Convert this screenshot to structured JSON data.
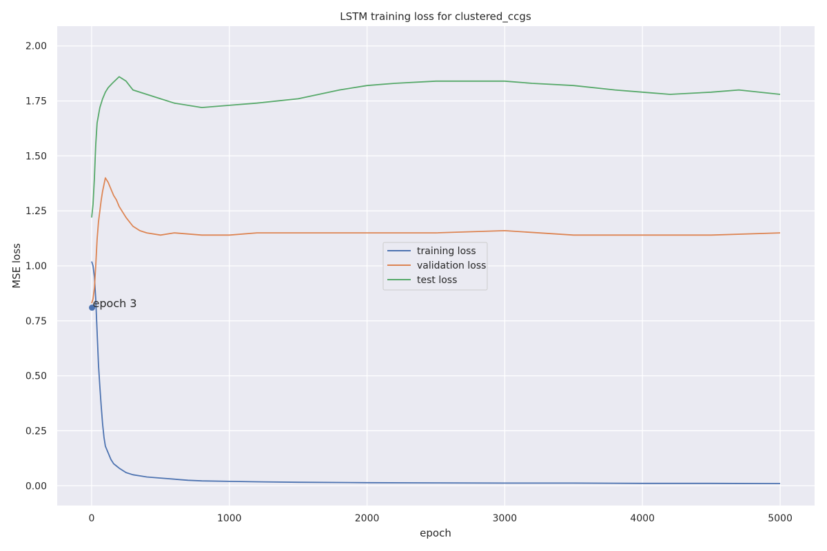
{
  "chart_data": {
    "type": "line",
    "title": "LSTM training loss for clustered_ccgs",
    "xlabel": "epoch",
    "ylabel": "MSE loss",
    "xlim": [
      -250,
      5250
    ],
    "ylim": [
      -0.09,
      2.09
    ],
    "xticks": [
      0,
      1000,
      2000,
      3000,
      4000,
      5000
    ],
    "yticks": [
      0.0,
      0.25,
      0.5,
      0.75,
      1.0,
      1.25,
      1.5,
      1.75,
      2.0
    ],
    "xtick_labels": [
      "0",
      "1000",
      "2000",
      "3000",
      "4000",
      "5000"
    ],
    "ytick_labels": [
      "0.00",
      "0.25",
      "0.50",
      "0.75",
      "1.00",
      "1.25",
      "1.50",
      "1.75",
      "2.00"
    ],
    "grid": true,
    "legend_position": "center",
    "series": [
      {
        "name": "training loss",
        "color": "#4c72b0",
        "x": [
          0,
          10,
          20,
          30,
          40,
          50,
          60,
          70,
          80,
          90,
          100,
          120,
          140,
          160,
          180,
          200,
          250,
          300,
          350,
          400,
          500,
          600,
          700,
          800,
          1000,
          1200,
          1500,
          2000,
          2500,
          3000,
          3500,
          4000,
          4500,
          5000
        ],
        "y": [
          1.02,
          1.0,
          0.95,
          0.85,
          0.7,
          0.55,
          0.45,
          0.36,
          0.28,
          0.22,
          0.18,
          0.15,
          0.12,
          0.1,
          0.09,
          0.08,
          0.06,
          0.05,
          0.045,
          0.04,
          0.035,
          0.03,
          0.025,
          0.022,
          0.02,
          0.018,
          0.016,
          0.014,
          0.013,
          0.012,
          0.012,
          0.011,
          0.011,
          0.01
        ]
      },
      {
        "name": "validation loss",
        "color": "#dd8452",
        "x": [
          0,
          10,
          20,
          30,
          40,
          50,
          60,
          70,
          80,
          100,
          120,
          140,
          160,
          180,
          200,
          250,
          300,
          350,
          400,
          500,
          600,
          800,
          1000,
          1200,
          1500,
          2000,
          2500,
          3000,
          3500,
          4000,
          4500,
          5000
        ],
        "y": [
          0.83,
          0.85,
          0.9,
          1.0,
          1.12,
          1.2,
          1.25,
          1.3,
          1.34,
          1.4,
          1.38,
          1.35,
          1.32,
          1.3,
          1.27,
          1.22,
          1.18,
          1.16,
          1.15,
          1.14,
          1.15,
          1.14,
          1.14,
          1.15,
          1.15,
          1.15,
          1.15,
          1.16,
          1.14,
          1.14,
          1.14,
          1.15
        ]
      },
      {
        "name": "test loss",
        "color": "#55a868",
        "x": [
          0,
          10,
          20,
          30,
          40,
          60,
          80,
          100,
          120,
          150,
          200,
          250,
          300,
          400,
          500,
          600,
          800,
          1000,
          1200,
          1500,
          1800,
          2000,
          2200,
          2500,
          2800,
          3000,
          3200,
          3500,
          3800,
          4000,
          4200,
          4500,
          4700,
          5000
        ],
        "y": [
          1.22,
          1.28,
          1.4,
          1.55,
          1.65,
          1.72,
          1.76,
          1.79,
          1.81,
          1.83,
          1.86,
          1.84,
          1.8,
          1.78,
          1.76,
          1.74,
          1.72,
          1.73,
          1.74,
          1.76,
          1.8,
          1.82,
          1.83,
          1.84,
          1.84,
          1.84,
          1.83,
          1.82,
          1.8,
          1.79,
          1.78,
          1.79,
          1.8,
          1.78
        ]
      }
    ],
    "annotations": [
      {
        "text": "epoch 3",
        "x": 3,
        "y": 0.81,
        "marker_color": "#4c72b0"
      }
    ]
  }
}
